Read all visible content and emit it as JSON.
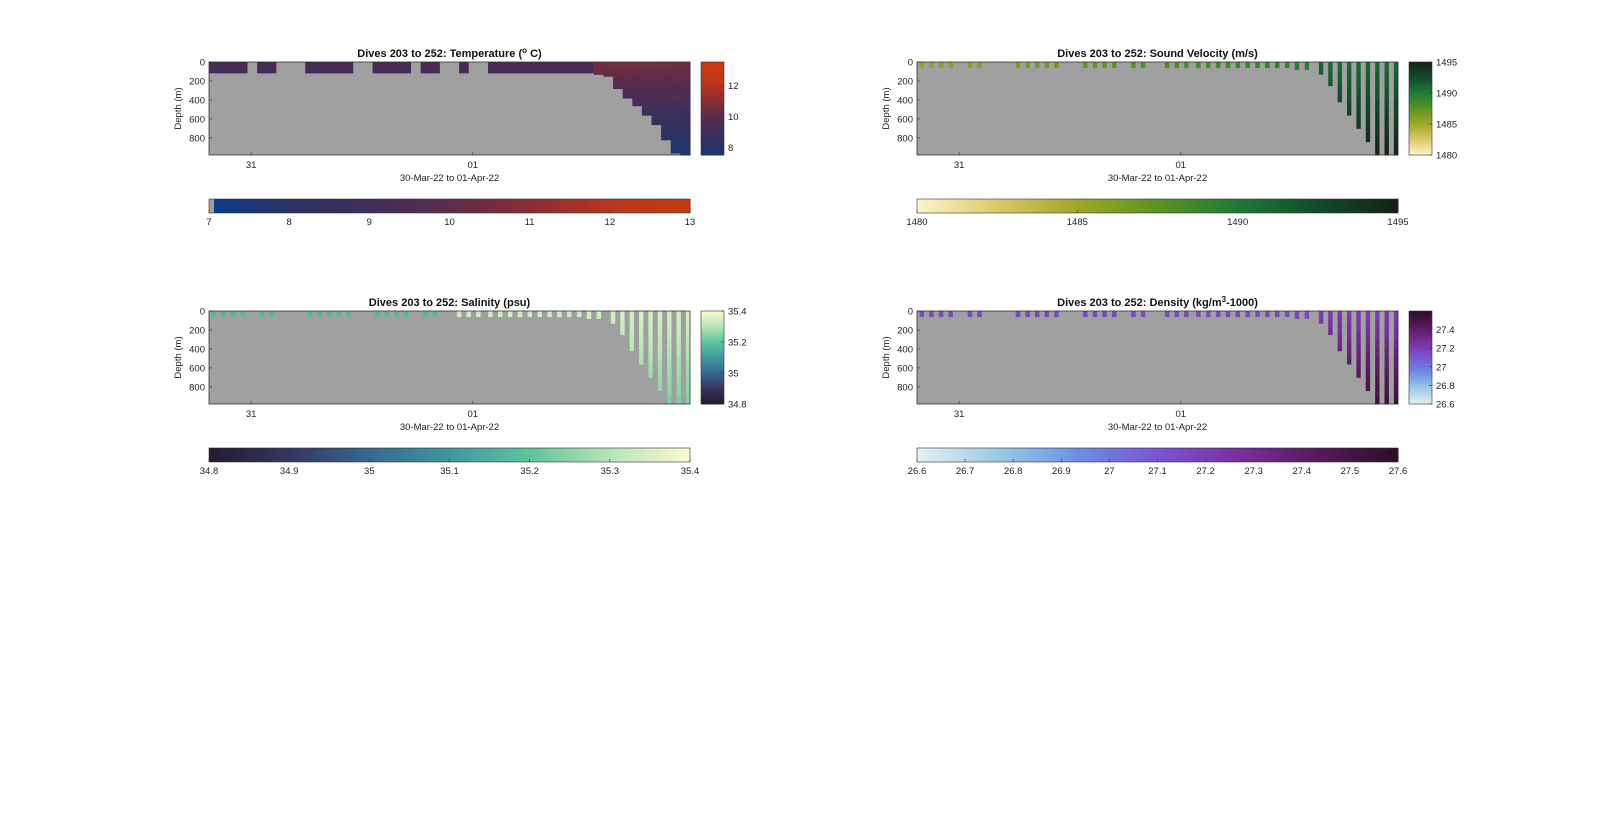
{
  "chart_data": [
    {
      "type": "heatmap",
      "variable": "temperature",
      "title": "Dives 203 to 252: Temperature (",
      "title_sup": "o",
      "title_tail": " C)",
      "ylabel": "Depth (m)",
      "xlabel": "30-Mar-22 to 01-Apr-22",
      "yticks": [
        0,
        200,
        400,
        600,
        800
      ],
      "ylim": [
        0,
        980
      ],
      "xticks": [
        {
          "label": "31",
          "day": 1
        },
        {
          "label": "01",
          "day": 2
        }
      ],
      "xlim_days": [
        0.81,
        2.98
      ],
      "side_colorbar_ticks": [
        8,
        10,
        12
      ],
      "side_colorbar_range": [
        7.5,
        13.5
      ],
      "bottom_colorbar_ticks": [
        7,
        8,
        9,
        10,
        11,
        12,
        13
      ],
      "bottom_colorbar_range": [
        7,
        13
      ],
      "colors": [
        "#0a3c92",
        "#2a3262",
        "#3e2e5a",
        "#5c2c4a",
        "#8a2d35",
        "#b83620",
        "#c83a10"
      ],
      "no_data_color": "#a0a0a0",
      "profile_values": "mean temperature 9.4 in shallow early dives, rising to ~11.5 near surface at the end; deep water ~7.7"
    },
    {
      "type": "heatmap",
      "variable": "sound_velocity",
      "title": "Dives 203 to 252: Sound Velocity (m/s)",
      "ylabel": "Depth (m)",
      "xlabel": "30-Mar-22 to 01-Apr-22",
      "yticks": [
        0,
        200,
        400,
        600,
        800
      ],
      "ylim": [
        0,
        980
      ],
      "xticks": [
        {
          "label": "31",
          "day": 1
        },
        {
          "label": "01",
          "day": 2
        }
      ],
      "xlim_days": [
        0.81,
        2.98
      ],
      "side_colorbar_ticks": [
        1480,
        1485,
        1490,
        1495
      ],
      "side_colorbar_range": [
        1480,
        1495
      ],
      "bottom_colorbar_ticks": [
        1480,
        1485,
        1490,
        1495
      ],
      "bottom_colorbar_range": [
        1480,
        1495
      ],
      "colors": [
        "#fbf5c9",
        "#dcc969",
        "#9fa727",
        "#5b9421",
        "#1d7a36",
        "#124b2c",
        "#152016"
      ],
      "no_data_color": "#a0a0a0"
    },
    {
      "type": "heatmap",
      "variable": "salinity",
      "title": "Dives 203 to 252: Salinity (psu)",
      "ylabel": "Depth (m)",
      "xlabel": "30-Mar-22 to 01-Apr-22",
      "yticks": [
        0,
        200,
        400,
        600,
        800
      ],
      "ylim": [
        0,
        980
      ],
      "xticks": [
        {
          "label": "31",
          "day": 1
        },
        {
          "label": "01",
          "day": 2
        }
      ],
      "xlim_days": [
        0.81,
        2.98
      ],
      "side_colorbar_ticks": [
        34.8,
        35,
        35.2,
        35.4
      ],
      "side_colorbar_range": [
        34.8,
        35.4
      ],
      "bottom_colorbar_ticks": [
        34.8,
        34.9,
        35,
        35.1,
        35.2,
        35.3,
        35.4
      ],
      "bottom_colorbar_range": [
        34.8,
        35.4
      ],
      "colors": [
        "#241b2d",
        "#34365f",
        "#37678f",
        "#3f98a1",
        "#5fc39d",
        "#b5e6b7",
        "#fcf9cf"
      ],
      "no_data_color": "#a0a0a0"
    },
    {
      "type": "heatmap",
      "variable": "density",
      "title": "Dives 203 to 252: Density (kg/m",
      "title_sup": "3",
      "title_tail": "-1000)",
      "ylabel": "Depth (m)",
      "xlabel": "30-Mar-22 to 01-Apr-22",
      "yticks": [
        0,
        200,
        400,
        600,
        800
      ],
      "ylim": [
        0,
        980
      ],
      "xticks": [
        {
          "label": "31",
          "day": 1
        },
        {
          "label": "01",
          "day": 2
        }
      ],
      "xlim_days": [
        0.81,
        2.98
      ],
      "side_colorbar_ticks": [
        26.6,
        26.8,
        27,
        27.2,
        27.4
      ],
      "side_colorbar_range": [
        26.6,
        27.6
      ],
      "bottom_colorbar_ticks": [
        26.6,
        26.7,
        26.8,
        26.9,
        27,
        27.1,
        27.2,
        27.3,
        27.4,
        27.5,
        27.6
      ],
      "bottom_colorbar_range": [
        26.6,
        27.6
      ],
      "colors": [
        "#e4f1f3",
        "#9ccbe6",
        "#6d8fe3",
        "#7a55d2",
        "#7a2f9c",
        "#561a5c",
        "#2a0f24"
      ],
      "no_data_color": "#a0a0a0"
    }
  ]
}
